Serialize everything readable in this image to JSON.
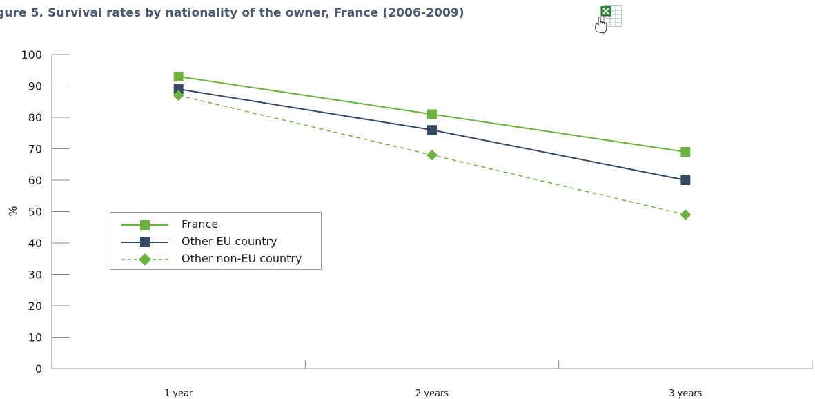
{
  "header": {
    "title": "gure 5. Survival rates by nationality of the owner, France (2006-2009)",
    "export_icon": "excel-export-icon"
  },
  "colors": {
    "france": "#6ab43b",
    "other_eu": "#354a64",
    "other_non_eu": "#6ab43b",
    "title": "#4a5a72",
    "axis": "#8c8c8c"
  },
  "chart_data": {
    "type": "line",
    "title": "gure 5. Survival rates by nationality of the owner, France (2006-2009)",
    "xlabel": "",
    "ylabel": "%",
    "categories": [
      "1 year",
      "2 years",
      "3 years"
    ],
    "ylim": [
      0,
      100
    ],
    "yticks": [
      0,
      10,
      20,
      30,
      40,
      50,
      60,
      70,
      80,
      90,
      100
    ],
    "grid": false,
    "legend_position": "middle-left",
    "series": [
      {
        "name": "France",
        "values": [
          93,
          81,
          69
        ],
        "marker": "square",
        "line": "solid"
      },
      {
        "name": "Other EU country",
        "values": [
          89,
          76,
          60
        ],
        "marker": "square",
        "line": "solid"
      },
      {
        "name": "Other non-EU country",
        "values": [
          87,
          68,
          49
        ],
        "marker": "diamond",
        "line": "dashed"
      }
    ]
  }
}
